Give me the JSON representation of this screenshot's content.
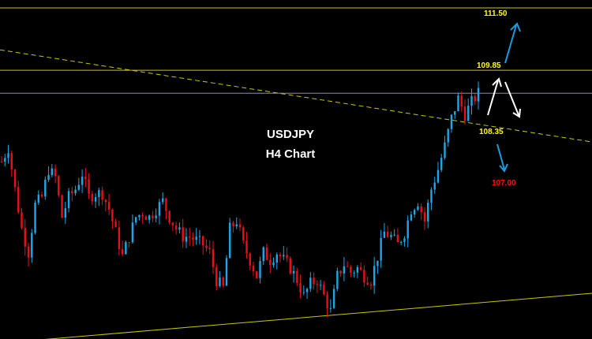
{
  "chart_data": {
    "type": "candlestick",
    "title": "USDJPY",
    "subtitle": "H4 Chart",
    "ylim": [
      102.73,
      111.71
    ],
    "grid": false,
    "background": "#000000",
    "colors": {
      "up": "#1ea7e8",
      "down": "#e8101a",
      "level": "#c8c800",
      "current": "#8a8fa8",
      "label": "#ffff00",
      "target_down": "#ff1010",
      "arrow_blue": "#1e9be0",
      "arrow_white": "#ffffff"
    },
    "closes": [
      107.43,
      107.8,
      106.7,
      105.65,
      105.02,
      106.28,
      106.49,
      107.22,
      107.01,
      105.96,
      106.49,
      106.7,
      107.11,
      106.49,
      106.59,
      106.59,
      106.17,
      105.55,
      104.92,
      105.44,
      105.96,
      106.07,
      105.96,
      106.17,
      106.38,
      105.96,
      105.65,
      105.44,
      105.44,
      105.34,
      105.23,
      105.02,
      104.29,
      104.08,
      105.65,
      105.86,
      105.23,
      104.82,
      104.4,
      105.02,
      104.82,
      105.02,
      104.82,
      104.61,
      104.29,
      103.87,
      104.19,
      104.29,
      103.87,
      103.46,
      104.4,
      104.71,
      104.5,
      104.61,
      104.4,
      104.29,
      104.92,
      105.55,
      105.44,
      105.23,
      105.55,
      106.17,
      106.38,
      105.86,
      106.7,
      107.22,
      107.84,
      108.58,
      109.1,
      108.68,
      109.0,
      109.24
    ],
    "horizontal_levels": [
      {
        "price": 111.5,
        "label": "111.50",
        "style": "solid"
      },
      {
        "price": 109.85,
        "label": "109.85",
        "style": "solid"
      },
      {
        "price": 109.24,
        "label": "",
        "style": "current-price"
      }
    ],
    "trendlines": [
      {
        "kind": "resistance",
        "style": "dashed",
        "price_left": 110.39,
        "price_right": 107.95
      },
      {
        "kind": "support",
        "style": "solid",
        "price_left": 102.62,
        "price_right": 103.94
      }
    ],
    "annotations": [
      {
        "label": "111.50",
        "color": "label"
      },
      {
        "label": "109.85",
        "color": "label"
      },
      {
        "label": "108.35",
        "color": "label"
      },
      {
        "label": "107.00",
        "color": "target_down"
      }
    ]
  }
}
